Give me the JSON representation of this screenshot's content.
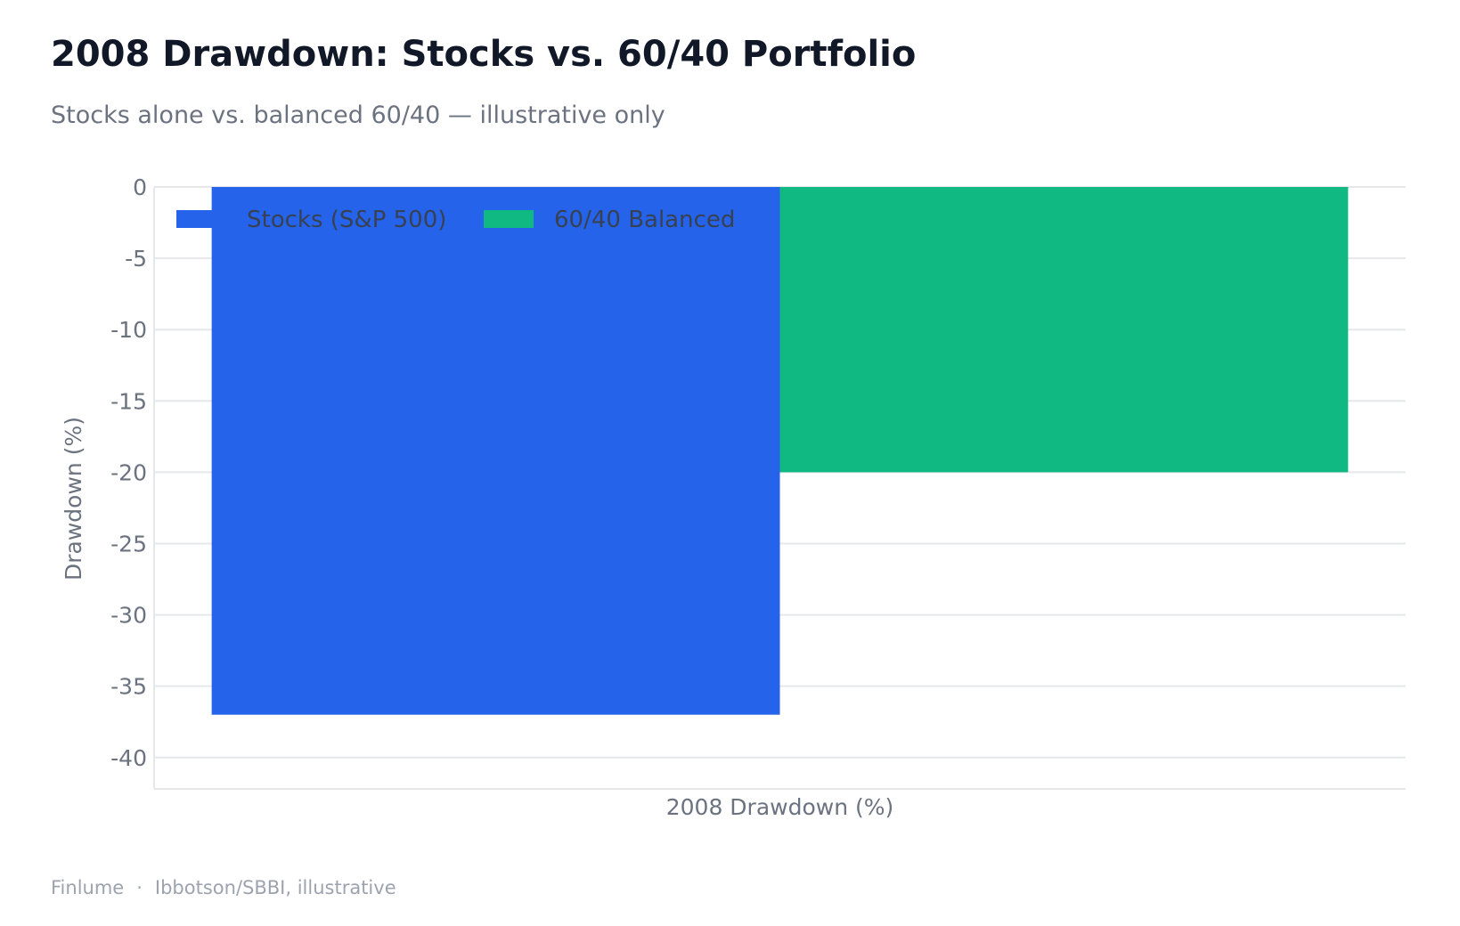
{
  "header": {
    "title": "2008 Drawdown: Stocks vs. 60/40 Portfolio",
    "subtitle": "Stocks alone vs. balanced 60/40 — illustrative only"
  },
  "footer": {
    "brand": "Finlume",
    "separator": "·",
    "source": "Ibbotson/SBBI, illustrative"
  },
  "chart_data": {
    "type": "bar",
    "categories": [
      "2008 Drawdown (%)"
    ],
    "series": [
      {
        "name": "Stocks (S&P 500)",
        "values": [
          -37
        ],
        "color": "#2563eb"
      },
      {
        "name": "60/40 Balanced",
        "values": [
          -20
        ],
        "color": "#10b981"
      }
    ],
    "title": "2008 Drawdown: Stocks vs. 60/40 Portfolio",
    "subtitle": "Stocks alone vs. balanced 60/40 — illustrative only",
    "xlabel": "2008 Drawdown (%)",
    "ylabel": "Drawdown (%)",
    "ylim": [
      -42.2,
      0
    ],
    "yticks": [
      0,
      -5,
      -10,
      -15,
      -20,
      -25,
      -30,
      -35,
      -40
    ],
    "grid": true,
    "legend": "top-left"
  }
}
